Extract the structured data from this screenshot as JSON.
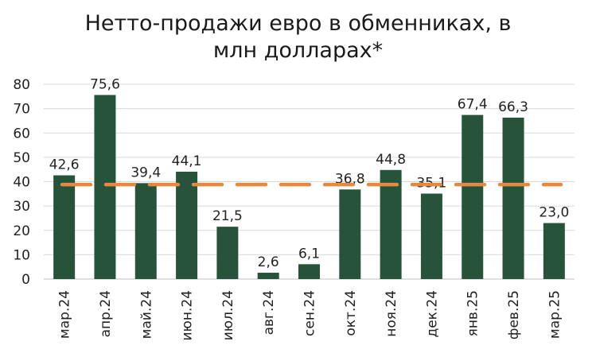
{
  "title_line1": "Нетто-продажи евро в обменниках, в",
  "title_line2": "млн долларах*",
  "chart_data": {
    "type": "bar",
    "categories": [
      "мар.24",
      "апр.24",
      "май.24",
      "июн.24",
      "июл.24",
      "авг.24",
      "сен.24",
      "окт.24",
      "ноя.24",
      "дек.24",
      "янв.25",
      "фев.25",
      "мар.25"
    ],
    "values": [
      42.6,
      75.6,
      39.4,
      44.1,
      21.5,
      2.6,
      6.1,
      36.8,
      44.8,
      35.1,
      67.4,
      66.3,
      23.0
    ],
    "value_labels": [
      "42,6",
      "75,6",
      "39,4",
      "44,1",
      "21,5",
      "2,6",
      "6,1",
      "36,8",
      "44,8",
      "35,1",
      "67,4",
      "66,3",
      "23,0"
    ],
    "average_line": 38.8,
    "yticks": [
      "0",
      "10",
      "20",
      "30",
      "40",
      "50",
      "60",
      "70",
      "80"
    ],
    "ylim": [
      0,
      80
    ],
    "grid": true,
    "bar_color": "#27533a",
    "avg_line_color": "#e08a44",
    "grid_color": "#d9d9d9"
  }
}
